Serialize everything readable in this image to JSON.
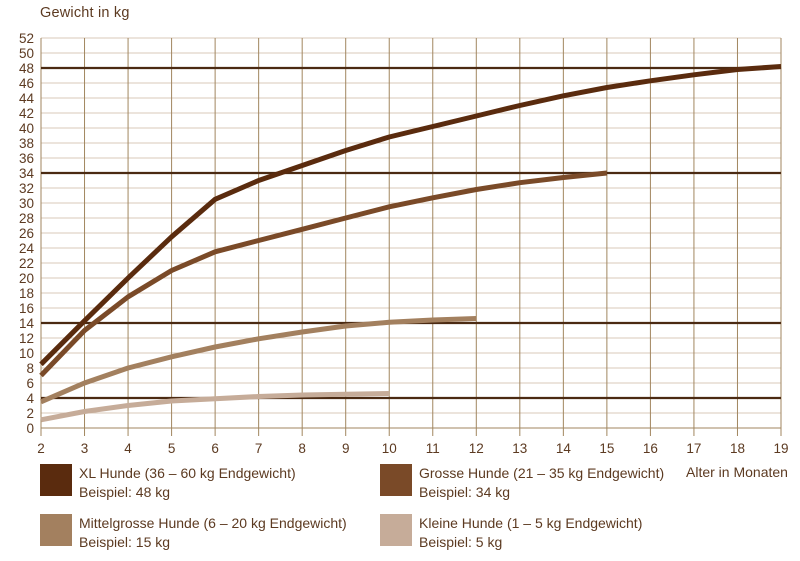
{
  "title": "Gewicht in kg",
  "x_axis_label": "Alter in Monaten",
  "colors": {
    "text": "#5c3a21",
    "grid_horizontal": "#d9c8ba",
    "grid_vertical": "#a1865f",
    "reference_line": "#4b2a12",
    "background": "#ffffff"
  },
  "chart_data": {
    "type": "line",
    "title": "Gewicht in kg",
    "xlabel": "Alter in Monaten",
    "ylabel": "Gewicht in kg",
    "xlim": [
      2,
      19
    ],
    "ylim": [
      0,
      52
    ],
    "grid": true,
    "legend_position": "bottom",
    "x_ticks": [
      2,
      3,
      4,
      5,
      6,
      7,
      8,
      9,
      10,
      11,
      12,
      13,
      14,
      15,
      16,
      17,
      18,
      19
    ],
    "y_ticks": [
      0,
      2,
      4,
      6,
      8,
      10,
      12,
      14,
      16,
      18,
      20,
      22,
      24,
      26,
      28,
      30,
      32,
      34,
      36,
      38,
      40,
      42,
      44,
      46,
      48,
      50,
      52
    ],
    "reference_lines": [
      48,
      34,
      14,
      4
    ],
    "series": [
      {
        "name": "XL Hunde (36 – 60 kg Endgewicht)",
        "example": "Beispiel: 48 kg",
        "color": "#5a2b0e",
        "points": [
          [
            2,
            8.5
          ],
          [
            3,
            14.3
          ],
          [
            4,
            20
          ],
          [
            5,
            25.5
          ],
          [
            6,
            30.5
          ],
          [
            7,
            33
          ],
          [
            8,
            35
          ],
          [
            9,
            37
          ],
          [
            10,
            38.8
          ],
          [
            11,
            40.2
          ],
          [
            12,
            41.6
          ],
          [
            13,
            43
          ],
          [
            14,
            44.3
          ],
          [
            15,
            45.4
          ],
          [
            16,
            46.3
          ],
          [
            17,
            47.1
          ],
          [
            18,
            47.8
          ],
          [
            19,
            48.2
          ]
        ]
      },
      {
        "name": "Grosse Hunde (21 – 35 kg Endgewicht)",
        "example": "Beispiel: 34 kg",
        "color": "#7a4a28",
        "points": [
          [
            2,
            7
          ],
          [
            3,
            13
          ],
          [
            4,
            17.5
          ],
          [
            5,
            21
          ],
          [
            6,
            23.5
          ],
          [
            7,
            25
          ],
          [
            8,
            26.5
          ],
          [
            9,
            28
          ],
          [
            10,
            29.5
          ],
          [
            11,
            30.7
          ],
          [
            12,
            31.8
          ],
          [
            13,
            32.7
          ],
          [
            14,
            33.4
          ],
          [
            15,
            34
          ]
        ]
      },
      {
        "name": "Mittelgrosse Hunde (6 – 20 kg Endgewicht)",
        "example": "Beispiel: 15 kg",
        "color": "#a3805f",
        "points": [
          [
            2,
            3.5
          ],
          [
            3,
            6
          ],
          [
            4,
            8
          ],
          [
            5,
            9.5
          ],
          [
            6,
            10.8
          ],
          [
            7,
            11.9
          ],
          [
            8,
            12.8
          ],
          [
            9,
            13.6
          ],
          [
            10,
            14.1
          ],
          [
            11,
            14.4
          ],
          [
            12,
            14.6
          ]
        ]
      },
      {
        "name": "Kleine Hunde (1 – 5 kg Endgewicht)",
        "example": "Beispiel: 5 kg",
        "color": "#c6ac99",
        "points": [
          [
            2,
            1.1
          ],
          [
            3,
            2.2
          ],
          [
            4,
            3
          ],
          [
            5,
            3.6
          ],
          [
            6,
            3.9
          ],
          [
            7,
            4.2
          ],
          [
            8,
            4.4
          ],
          [
            9,
            4.5
          ],
          [
            10,
            4.6
          ]
        ]
      }
    ]
  },
  "legend": {
    "items": [
      {
        "label": "XL Hunde (36 – 60 kg Endgewicht)",
        "example": "Beispiel: 48 kg",
        "color": "#5a2b0e"
      },
      {
        "label": "Grosse Hunde (21 – 35 kg Endgewicht)",
        "example": "Beispiel: 34 kg",
        "color": "#7a4a28"
      },
      {
        "label": "Mittelgrosse Hunde (6 – 20 kg Endgewicht)",
        "example": "Beispiel: 15 kg",
        "color": "#a3805f"
      },
      {
        "label": "Kleine Hunde (1 – 5 kg Endgewicht)",
        "example": "Beispiel: 5 kg",
        "color": "#c6ac99"
      }
    ]
  }
}
